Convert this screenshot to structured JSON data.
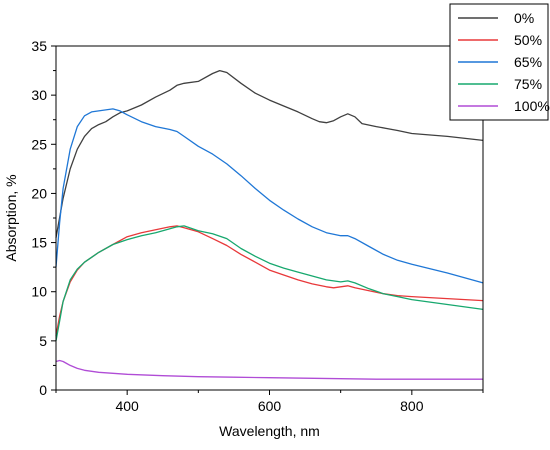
{
  "chart_data": {
    "type": "line",
    "title": "",
    "xlabel": "Wavelength, nm",
    "ylabel": "Absorption, %",
    "xlim": [
      300,
      900
    ],
    "ylim": [
      0,
      35
    ],
    "xticks": [
      400,
      600,
      800
    ],
    "yticks": [
      0,
      5,
      10,
      15,
      20,
      25,
      30,
      35
    ],
    "grid": false,
    "legend_position": "top-right",
    "series": [
      {
        "name": "0%",
        "color": "#404040",
        "x": [
          300,
          310,
          320,
          330,
          340,
          350,
          360,
          370,
          380,
          390,
          400,
          420,
          440,
          460,
          470,
          480,
          500,
          520,
          530,
          540,
          560,
          580,
          600,
          620,
          640,
          660,
          670,
          680,
          690,
          700,
          710,
          720,
          730,
          750,
          780,
          800,
          850,
          900
        ],
        "y": [
          15.5,
          19.5,
          22.5,
          24.5,
          25.8,
          26.6,
          27.0,
          27.3,
          27.8,
          28.2,
          28.4,
          29.0,
          29.8,
          30.5,
          31.0,
          31.2,
          31.4,
          32.2,
          32.5,
          32.3,
          31.2,
          30.2,
          29.5,
          28.9,
          28.3,
          27.6,
          27.3,
          27.2,
          27.4,
          27.8,
          28.1,
          27.8,
          27.1,
          26.8,
          26.4,
          26.1,
          25.8,
          25.4
        ]
      },
      {
        "name": "50%",
        "color": "#e8383a",
        "x": [
          300,
          305,
          310,
          320,
          330,
          340,
          350,
          360,
          380,
          400,
          420,
          440,
          460,
          470,
          480,
          500,
          520,
          540,
          560,
          580,
          600,
          620,
          640,
          660,
          680,
          690,
          700,
          710,
          720,
          740,
          760,
          780,
          800,
          850,
          900
        ],
        "y": [
          5.5,
          7.5,
          9.0,
          11.0,
          12.2,
          13.0,
          13.5,
          14.0,
          14.8,
          15.6,
          16.0,
          16.3,
          16.6,
          16.7,
          16.5,
          16.1,
          15.4,
          14.7,
          13.8,
          13.0,
          12.2,
          11.7,
          11.2,
          10.8,
          10.5,
          10.4,
          10.5,
          10.6,
          10.4,
          10.1,
          9.8,
          9.6,
          9.5,
          9.3,
          9.1
        ]
      },
      {
        "name": "65%",
        "color": "#1f77d6",
        "x": [
          300,
          305,
          310,
          320,
          330,
          340,
          350,
          360,
          370,
          380,
          390,
          400,
          420,
          440,
          460,
          470,
          480,
          500,
          520,
          540,
          560,
          580,
          600,
          620,
          640,
          660,
          680,
          700,
          710,
          720,
          740,
          760,
          780,
          800,
          850,
          900
        ],
        "y": [
          12.5,
          17.0,
          20.5,
          24.5,
          26.8,
          27.9,
          28.3,
          28.4,
          28.5,
          28.6,
          28.4,
          28.0,
          27.3,
          26.8,
          26.5,
          26.3,
          25.8,
          24.8,
          24.0,
          23.0,
          21.8,
          20.5,
          19.3,
          18.3,
          17.4,
          16.6,
          16.0,
          15.7,
          15.7,
          15.4,
          14.6,
          13.8,
          13.2,
          12.8,
          11.9,
          10.9
        ]
      },
      {
        "name": "75%",
        "color": "#17a86e",
        "x": [
          300,
          305,
          310,
          320,
          330,
          340,
          350,
          360,
          380,
          400,
          420,
          440,
          460,
          470,
          480,
          500,
          520,
          540,
          560,
          580,
          600,
          620,
          640,
          660,
          680,
          700,
          710,
          720,
          740,
          760,
          780,
          800,
          850,
          900
        ],
        "y": [
          5.0,
          7.0,
          9.0,
          11.2,
          12.3,
          13.0,
          13.5,
          14.0,
          14.8,
          15.3,
          15.7,
          16.0,
          16.4,
          16.6,
          16.7,
          16.2,
          15.9,
          15.4,
          14.4,
          13.6,
          12.9,
          12.4,
          12.0,
          11.6,
          11.2,
          11.0,
          11.1,
          10.9,
          10.3,
          9.8,
          9.5,
          9.2,
          8.7,
          8.2
        ]
      },
      {
        "name": "100%",
        "color": "#b04cd6",
        "x": [
          300,
          305,
          310,
          315,
          320,
          330,
          340,
          360,
          380,
          400,
          450,
          500,
          550,
          600,
          650,
          700,
          750,
          800,
          850,
          900
        ],
        "y": [
          2.9,
          3.0,
          2.9,
          2.7,
          2.5,
          2.2,
          2.0,
          1.8,
          1.7,
          1.6,
          1.45,
          1.35,
          1.3,
          1.25,
          1.2,
          1.15,
          1.1,
          1.1,
          1.1,
          1.1
        ]
      }
    ]
  }
}
